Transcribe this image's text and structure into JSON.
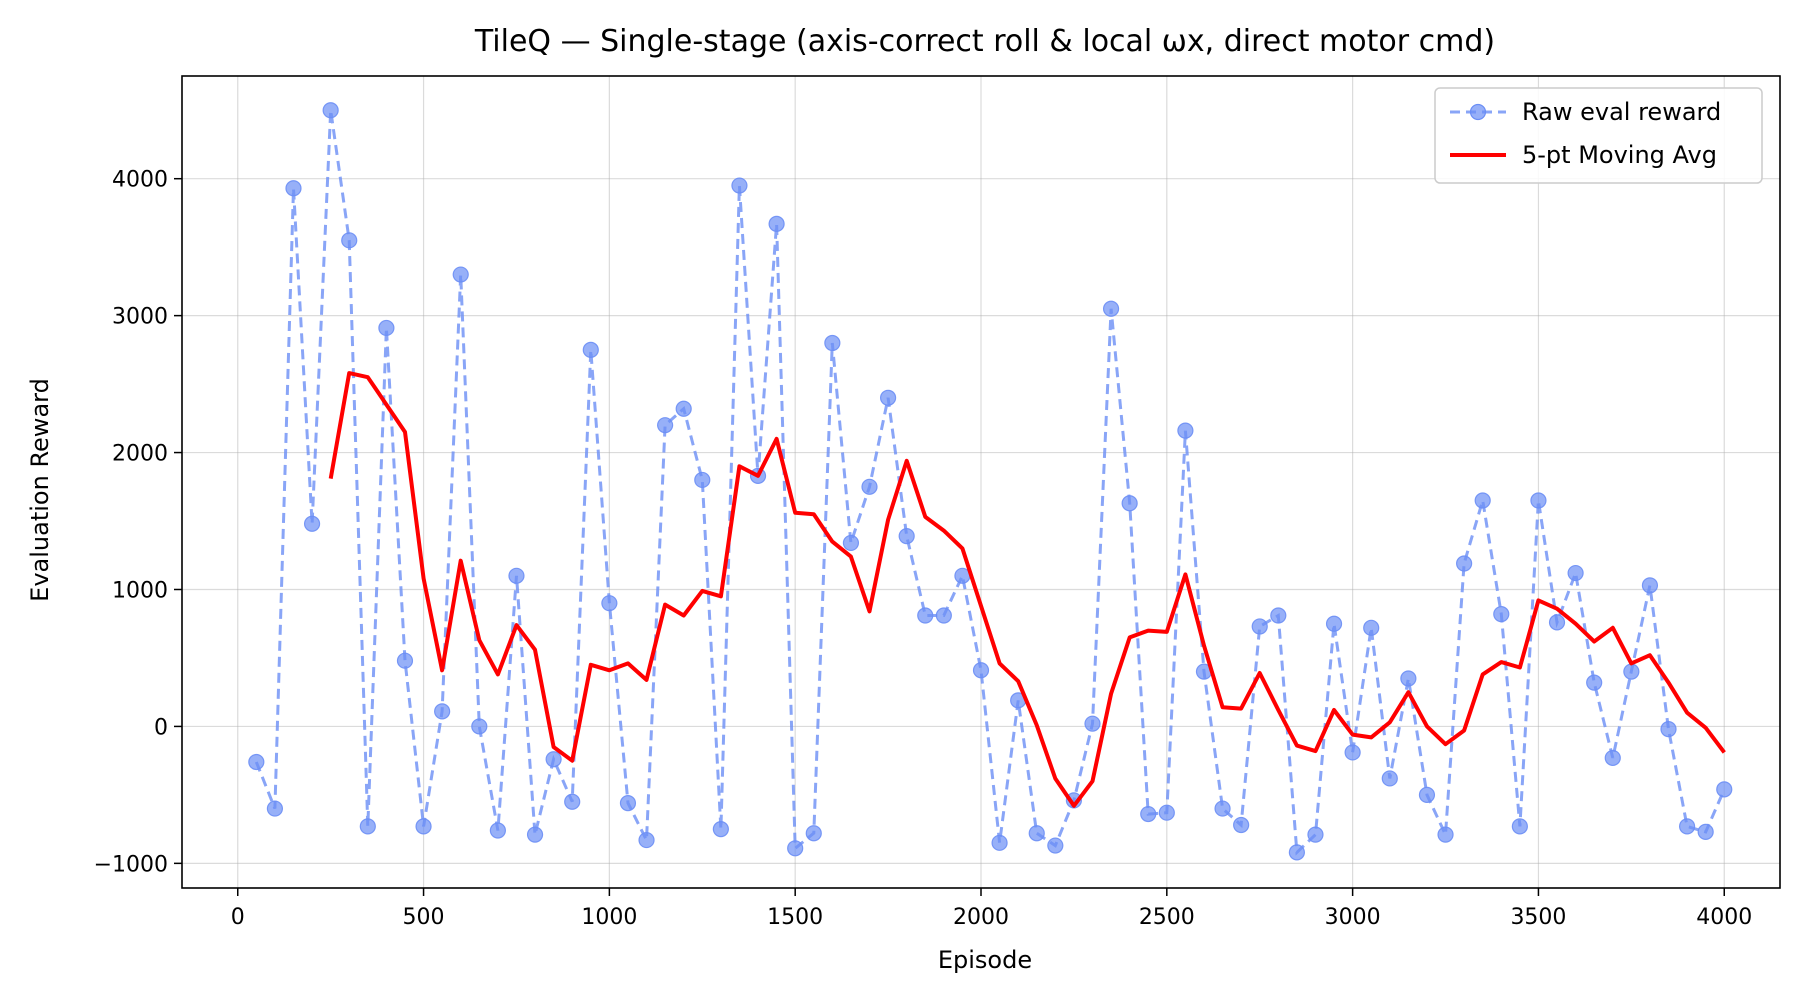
{
  "chart_data": {
    "type": "line",
    "title": "TileQ — Single-stage (axis-correct roll & local ωx, direct motor cmd)",
    "xlabel": "Episode",
    "ylabel": "Evaluation Reward",
    "xlim": [
      -150,
      4150
    ],
    "ylim": [
      -1180,
      4750
    ],
    "xticks": [
      0,
      500,
      1000,
      1500,
      2000,
      2500,
      3000,
      3500,
      4000
    ],
    "xtick_labels": [
      "0",
      "500",
      "1000",
      "1500",
      "2000",
      "2500",
      "3000",
      "3500",
      "4000"
    ],
    "yticks": [
      -1000,
      0,
      1000,
      2000,
      3000,
      4000
    ],
    "ytick_labels": [
      "−1000",
      "0",
      "1000",
      "2000",
      "3000",
      "4000"
    ],
    "grid": true,
    "legend_position": "top-right",
    "series": [
      {
        "name": "Raw eval reward",
        "style": "dashed-with-markers",
        "color": "#6b8ef5",
        "x": [
          50,
          100,
          150,
          200,
          250,
          300,
          350,
          400,
          450,
          500,
          550,
          600,
          650,
          700,
          750,
          800,
          850,
          900,
          950,
          1000,
          1050,
          1100,
          1150,
          1200,
          1250,
          1300,
          1350,
          1400,
          1450,
          1500,
          1550,
          1600,
          1650,
          1700,
          1750,
          1800,
          1850,
          1900,
          1950,
          2000,
          2050,
          2100,
          2150,
          2200,
          2250,
          2300,
          2350,
          2400,
          2450,
          2500,
          2550,
          2600,
          2650,
          2700,
          2750,
          2800,
          2850,
          2900,
          2950,
          3000,
          3050,
          3100,
          3150,
          3200,
          3250,
          3300,
          3350,
          3400,
          3450,
          3500,
          3550,
          3600,
          3650,
          3700,
          3750,
          3800,
          3850,
          3900,
          3950,
          4000
        ],
        "y": [
          -260,
          -600,
          3930,
          1480,
          4500,
          3550,
          -730,
          2910,
          480,
          -730,
          110,
          3300,
          0,
          -760,
          1100,
          -790,
          -240,
          -550,
          2750,
          900,
          -560,
          -830,
          2200,
          2320,
          1800,
          -750,
          3950,
          1830,
          3670,
          -890,
          -780,
          2800,
          1340,
          1750,
          2400,
          1390,
          810,
          810,
          1100,
          410,
          -850,
          190,
          -780,
          -870,
          -540,
          20,
          3050,
          1630,
          -640,
          -630,
          2160,
          400,
          -600,
          -720,
          730,
          810,
          -920,
          -790,
          750,
          -190,
          720,
          -380,
          350,
          -500,
          -790,
          1190,
          1650,
          820,
          -730,
          1650,
          760,
          1120,
          320,
          -230,
          400,
          1030,
          -20,
          -730,
          -770,
          -460
        ]
      },
      {
        "name": "5-pt Moving Avg",
        "style": "solid",
        "color": "#ff0000",
        "x": [
          250,
          300,
          350,
          400,
          450,
          500,
          550,
          600,
          650,
          700,
          750,
          800,
          850,
          900,
          950,
          1000,
          1050,
          1100,
          1150,
          1200,
          1250,
          1300,
          1350,
          1400,
          1450,
          1500,
          1550,
          1600,
          1650,
          1700,
          1750,
          1800,
          1850,
          1900,
          1950,
          2000,
          2050,
          2100,
          2150,
          2200,
          2250,
          2300,
          2350,
          2400,
          2450,
          2500,
          2550,
          2600,
          2650,
          2700,
          2750,
          2800,
          2850,
          2900,
          2950,
          3000,
          3050,
          3100,
          3150,
          3200,
          3250,
          3300,
          3350,
          3400,
          3450,
          3500,
          3550,
          3600,
          3650,
          3700,
          3750,
          3800,
          3850,
          3900,
          3950,
          4000
        ],
        "y": [
          1810,
          2580,
          2550,
          2350,
          2150,
          1080,
          410,
          1210,
          630,
          380,
          740,
          560,
          -150,
          -250,
          450,
          410,
          460,
          340,
          890,
          810,
          990,
          950,
          1900,
          1830,
          2100,
          1560,
          1550,
          1350,
          1240,
          840,
          1510,
          1940,
          1530,
          1430,
          1300,
          880,
          460,
          330,
          10,
          -380,
          -580,
          -400,
          240,
          650,
          700,
          690,
          1110,
          590,
          140,
          130,
          390,
          120,
          -140,
          -180,
          120,
          -60,
          -80,
          30,
          250,
          0,
          -130,
          -30,
          380,
          470,
          430,
          920,
          860,
          750,
          620,
          720,
          460,
          520,
          320,
          100,
          -10,
          -190
        ]
      }
    ]
  }
}
